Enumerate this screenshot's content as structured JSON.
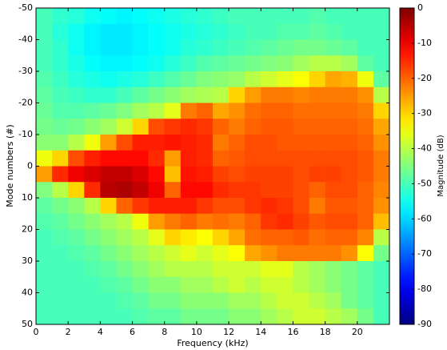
{
  "chart_data": {
    "type": "heatmap",
    "colormap": "jet",
    "x_label": "Frequency (kHz)",
    "y_label": "Mode numbers (#)",
    "colorbar_label": "Magnitude (dB)",
    "xlim": [
      0,
      22
    ],
    "xticks": [
      0,
      2,
      4,
      6,
      8,
      10,
      12,
      14,
      16,
      18,
      20
    ],
    "ylim": [
      -50,
      50
    ],
    "y_inverted": true,
    "yticks": [
      -50,
      -40,
      -30,
      -20,
      -10,
      0,
      10,
      20,
      30,
      40,
      50
    ],
    "clim": [
      -90,
      0
    ],
    "cticks": [
      -90,
      -80,
      -70,
      -60,
      -50,
      -40,
      -30,
      -20,
      -10,
      0
    ],
    "x": [
      0.5,
      1.5,
      2.5,
      3.5,
      4.5,
      5.5,
      6.5,
      7.5,
      8.5,
      9.5,
      10.5,
      11.5,
      12.5,
      13.5,
      14.5,
      15.5,
      16.5,
      17.5,
      18.5,
      19.5,
      20.5,
      21.5
    ],
    "y": [
      -47.5,
      -42.5,
      -37.5,
      -32.5,
      -27.5,
      -22.5,
      -17.5,
      -12.5,
      -7.5,
      -2.5,
      2.5,
      7.5,
      12.5,
      17.5,
      22.5,
      27.5,
      32.5,
      37.5,
      42.5,
      47.5
    ],
    "z": [
      [
        -50,
        -52,
        -53,
        -55,
        -56,
        -57,
        -56,
        -55,
        -54,
        -53,
        -52,
        -51,
        -50,
        -50,
        -50,
        -50,
        -50,
        -49,
        -50,
        -50,
        -50,
        -50
      ],
      [
        -50,
        -53,
        -55,
        -57,
        -58,
        -58,
        -57,
        -56,
        -55,
        -54,
        -53,
        -52,
        -51,
        -50,
        -50,
        -49,
        -49,
        -48,
        -49,
        -50,
        -50,
        -50
      ],
      [
        -50,
        -52,
        -55,
        -57,
        -58,
        -58,
        -57,
        -56,
        -55,
        -53,
        -52,
        -51,
        -50,
        -49,
        -48,
        -47,
        -46,
        -46,
        -47,
        -48,
        -50,
        -50
      ],
      [
        -50,
        -52,
        -54,
        -56,
        -57,
        -57,
        -56,
        -55,
        -53,
        -51,
        -49,
        -48,
        -47,
        -46,
        -45,
        -44,
        -42,
        -40,
        -40,
        -42,
        -48,
        -50
      ],
      [
        -49,
        -51,
        -53,
        -54,
        -55,
        -54,
        -53,
        -51,
        -49,
        -47,
        -45,
        -44,
        -43,
        -40,
        -38,
        -36,
        -34,
        -30,
        -26,
        -27,
        -35,
        -48
      ],
      [
        -48,
        -50,
        -51,
        -52,
        -52,
        -50,
        -48,
        -46,
        -44,
        -42,
        -41,
        -40,
        -30,
        -25,
        -22,
        -22,
        -23,
        -22,
        -22,
        -22,
        -24,
        -40
      ],
      [
        -47,
        -49,
        -49,
        -48,
        -47,
        -45,
        -42,
        -40,
        -36,
        -22,
        -20,
        -26,
        -24,
        -21,
        -20,
        -20,
        -21,
        -21,
        -21,
        -21,
        -22,
        -30
      ],
      [
        -46,
        -47,
        -46,
        -44,
        -42,
        -38,
        -30,
        -18,
        -16,
        -15,
        -16,
        -20,
        -22,
        -20,
        -19,
        -19,
        -20,
        -20,
        -20,
        -20,
        -21,
        -26
      ],
      [
        -44,
        -44,
        -40,
        -35,
        -25,
        -18,
        -14,
        -14,
        -13,
        -14,
        -15,
        -22,
        -20,
        -18,
        -18,
        -19,
        -19,
        -19,
        -19,
        -19,
        -20,
        -24
      ],
      [
        -35,
        -30,
        -18,
        -14,
        -12,
        -12,
        -12,
        -15,
        -25,
        -14,
        -15,
        -20,
        -19,
        -18,
        -18,
        -18,
        -18,
        -18,
        -18,
        -18,
        -19,
        -22
      ],
      [
        -25,
        -15,
        -10,
        -8,
        -6,
        -6,
        -8,
        -12,
        -28,
        -13,
        -14,
        -17,
        -18,
        -17,
        -17,
        -17,
        -18,
        -17,
        -17,
        -18,
        -19,
        -22
      ],
      [
        -45,
        -40,
        -30,
        -15,
        -5,
        -4,
        -6,
        -10,
        -20,
        -12,
        -12,
        -15,
        -16,
        -16,
        -17,
        -17,
        -18,
        -20,
        -18,
        -18,
        -20,
        -23
      ],
      [
        -48,
        -46,
        -44,
        -40,
        -30,
        -20,
        -16,
        -14,
        -14,
        -14,
        -16,
        -18,
        -18,
        -16,
        -15,
        -16,
        -18,
        -22,
        -19,
        -19,
        -20,
        -24
      ],
      [
        -49,
        -48,
        -46,
        -44,
        -42,
        -40,
        -35,
        -25,
        -22,
        -20,
        -22,
        -21,
        -22,
        -20,
        -16,
        -15,
        -17,
        -19,
        -18,
        -18,
        -20,
        -28
      ],
      [
        -50,
        -49,
        -48,
        -46,
        -44,
        -42,
        -40,
        -36,
        -30,
        -32,
        -34,
        -30,
        -26,
        -21,
        -20,
        -20,
        -19,
        -21,
        -20,
        -20,
        -23,
        -40
      ],
      [
        -50,
        -50,
        -49,
        -48,
        -46,
        -44,
        -42,
        -40,
        -38,
        -36,
        -38,
        -36,
        -34,
        -26,
        -24,
        -22,
        -22,
        -22,
        -22,
        -24,
        -34,
        -46
      ],
      [
        -50,
        -50,
        -50,
        -49,
        -48,
        -46,
        -44,
        -42,
        -40,
        -40,
        -40,
        -38,
        -38,
        -38,
        -36,
        -36,
        -40,
        -42,
        -44,
        -46,
        -48,
        -50
      ],
      [
        -50,
        -50,
        -50,
        -50,
        -49,
        -48,
        -46,
        -44,
        -44,
        -42,
        -42,
        -40,
        -38,
        -40,
        -38,
        -38,
        -40,
        -42,
        -44,
        -46,
        -48,
        -50
      ],
      [
        -50,
        -50,
        -50,
        -50,
        -50,
        -49,
        -48,
        -46,
        -46,
        -44,
        -44,
        -44,
        -42,
        -42,
        -40,
        -38,
        -38,
        -40,
        -42,
        -46,
        -48,
        -50
      ],
      [
        -50,
        -50,
        -50,
        -50,
        -50,
        -50,
        -49,
        -48,
        -48,
        -46,
        -46,
        -46,
        -44,
        -44,
        -42,
        -40,
        -38,
        -38,
        -40,
        -42,
        -46,
        -50
      ]
    ]
  }
}
